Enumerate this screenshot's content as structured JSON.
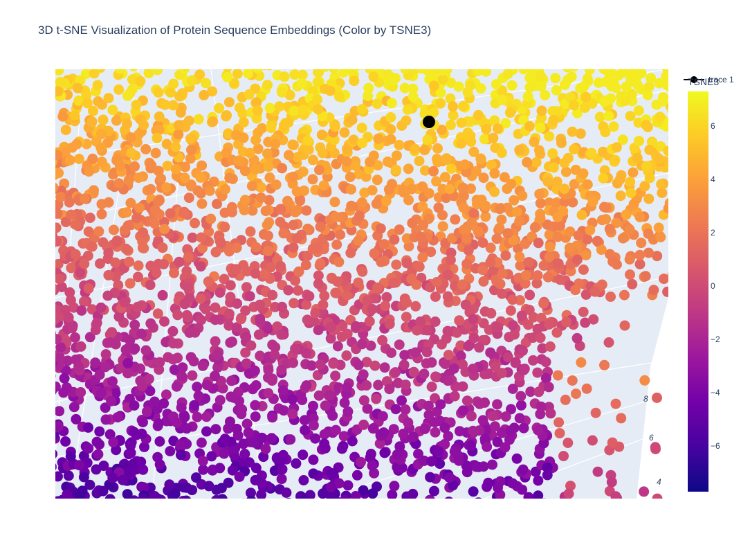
{
  "chart_data": {
    "type": "scatter",
    "title": "3D t-SNE Visualization of Protein Sequence Embeddings (Color by TSNE3)",
    "legend": {
      "entries": [
        "trace 1"
      ],
      "placement": "top-right"
    },
    "colorbar": {
      "title": "TSNE3",
      "colorscale": "plasma",
      "range": [
        -7.7,
        7.3
      ],
      "ticks": [
        6,
        4,
        2,
        0,
        -2,
        -4,
        -6
      ],
      "tick_labels": [
        "6",
        "4",
        "2",
        "0",
        "−2",
        "−4",
        "−6"
      ]
    },
    "axis_tick_labels": [
      "8",
      "6",
      "4"
    ],
    "highlight_marker": {
      "color": "#000000"
    }
  }
}
